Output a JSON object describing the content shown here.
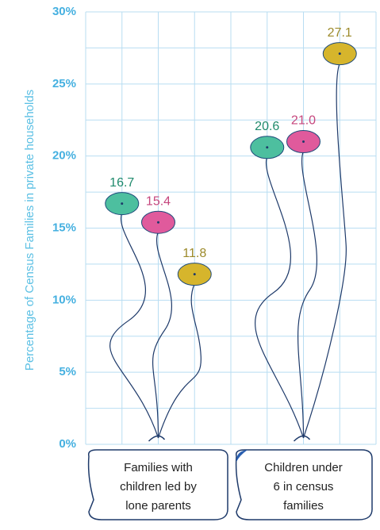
{
  "chart_data": {
    "type": "balloon",
    "y_label": "Percentage of Census Families in private households",
    "categories": [
      "Families with children led by lone parents",
      "Children under 6 in census families"
    ],
    "series": [
      {
        "color": "#4dbf9f",
        "label_color": "#1f8a6c",
        "values": [
          16.7,
          20.6
        ],
        "value_labels": [
          "16.7",
          "20.6"
        ]
      },
      {
        "color": "#e05a9c",
        "label_color": "#c6467d",
        "values": [
          15.4,
          21.0
        ],
        "value_labels": [
          "15.4",
          "21.0"
        ]
      },
      {
        "color": "#d6b52c",
        "label_color": "#9c8a2a",
        "values": [
          11.8,
          27.1
        ],
        "value_labels": [
          "11.8",
          "27.1"
        ]
      }
    ],
    "ylim": [
      0,
      30
    ],
    "yticks": [
      {
        "value": 0,
        "label": "0%"
      },
      {
        "value": 5,
        "label": "5%"
      },
      {
        "value": 10,
        "label": "10%"
      },
      {
        "value": 15,
        "label": "15%"
      },
      {
        "value": 20,
        "label": "20%"
      },
      {
        "value": 25,
        "label": "25%"
      },
      {
        "value": 30,
        "label": "30%"
      }
    ],
    "grid": true
  }
}
